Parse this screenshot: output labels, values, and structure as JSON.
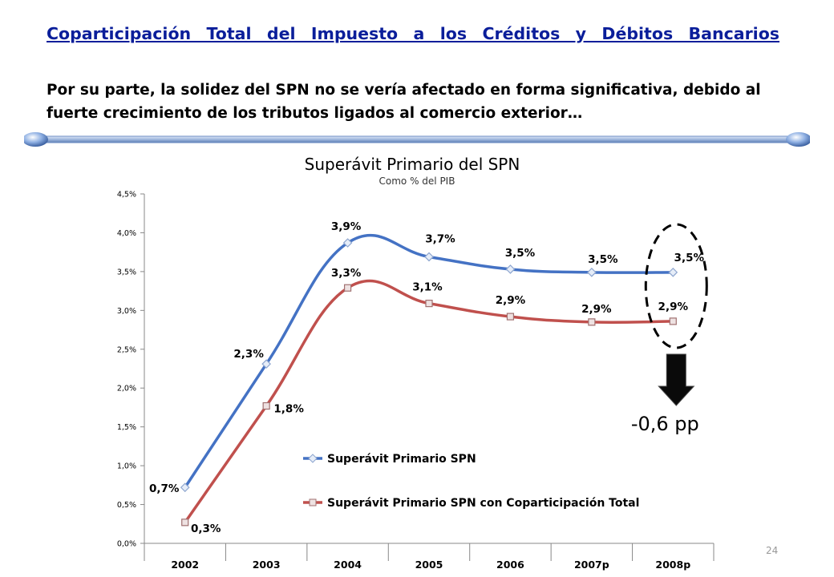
{
  "slide": {
    "title": "Coparticipación Total del Impuesto a los Créditos y Débitos Bancarios",
    "subtitle": "Por su parte, la solidez del SPN no se vería afectado en forma significativa, debido al fuerte crecimiento de los tributos ligados al comercio exterior…",
    "page_number": "24"
  },
  "chart_data": {
    "type": "line",
    "title": "Superávit Primario del SPN",
    "subtitle": "Como % del PIB",
    "categories": [
      "2002",
      "2003",
      "2004",
      "2005",
      "2006",
      "2007p",
      "2008p"
    ],
    "ylim": [
      0,
      4.5
    ],
    "yticks": [
      "0,0%",
      "0,5%",
      "1,0%",
      "1,5%",
      "2,0%",
      "2,5%",
      "3,0%",
      "3,5%",
      "4,0%",
      "4,5%"
    ],
    "series": [
      {
        "name": "Superávit Primario SPN",
        "values": [
          0.72,
          2.31,
          3.87,
          3.69,
          3.53,
          3.49,
          3.49
        ],
        "labels": [
          "0,7%",
          "2,3%",
          "3,9%",
          "3,7%",
          "3,5%",
          "3,5%",
          "3,5%"
        ],
        "color": "#4472c4",
        "marker": "diamond"
      },
      {
        "name": "Superávit Primario SPN con Coparticipación Total",
        "values": [
          0.27,
          1.77,
          3.29,
          3.09,
          2.92,
          2.85,
          2.86
        ],
        "labels": [
          "0,3%",
          "1,8%",
          "3,3%",
          "3,1%",
          "2,9%",
          "2,9%",
          "2,9%"
        ],
        "color": "#c0504d",
        "marker": "square"
      }
    ],
    "legend_position": "inside-bottom-right",
    "annotation": {
      "text": "-0,6 pp"
    },
    "grid": false
  }
}
